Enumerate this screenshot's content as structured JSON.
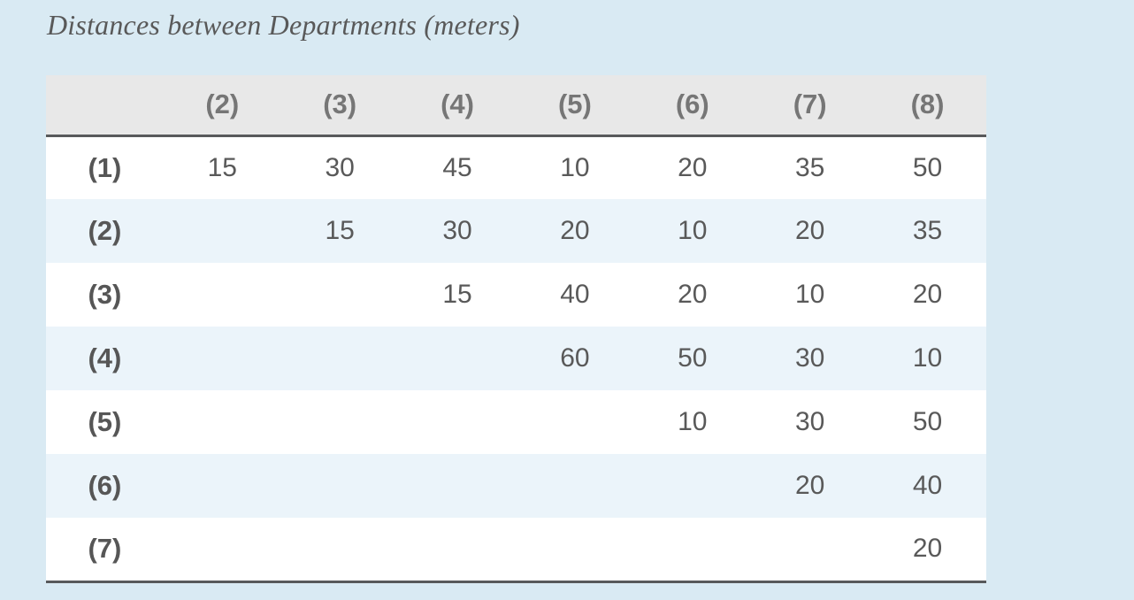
{
  "title": "Distances between Departments (meters)",
  "chart_data": {
    "type": "table",
    "title": "Distances between Departments (meters)",
    "column_headers": [
      "(2)",
      "(3)",
      "(4)",
      "(5)",
      "(6)",
      "(7)",
      "(8)"
    ],
    "row_labels": [
      "(1)",
      "(2)",
      "(3)",
      "(4)",
      "(5)",
      "(6)",
      "(7)"
    ],
    "cells": [
      [
        15,
        30,
        45,
        10,
        20,
        35,
        50
      ],
      [
        null,
        15,
        30,
        20,
        10,
        20,
        35
      ],
      [
        null,
        null,
        15,
        40,
        20,
        10,
        20
      ],
      [
        null,
        null,
        null,
        60,
        50,
        30,
        10
      ],
      [
        null,
        null,
        null,
        null,
        10,
        30,
        50
      ],
      [
        null,
        null,
        null,
        null,
        null,
        20,
        40
      ],
      [
        null,
        null,
        null,
        null,
        null,
        null,
        20
      ]
    ]
  },
  "colors": {
    "page_bg": "#d9eaf3",
    "header_bg": "#e8e8e8",
    "stripe_bg": "#ebf4fa",
    "row_bg": "#ffffff",
    "rule_color": "#58595b",
    "title_color": "#595959",
    "header_text": "#767676",
    "label_text": "#565656",
    "cell_text": "#595959"
  }
}
